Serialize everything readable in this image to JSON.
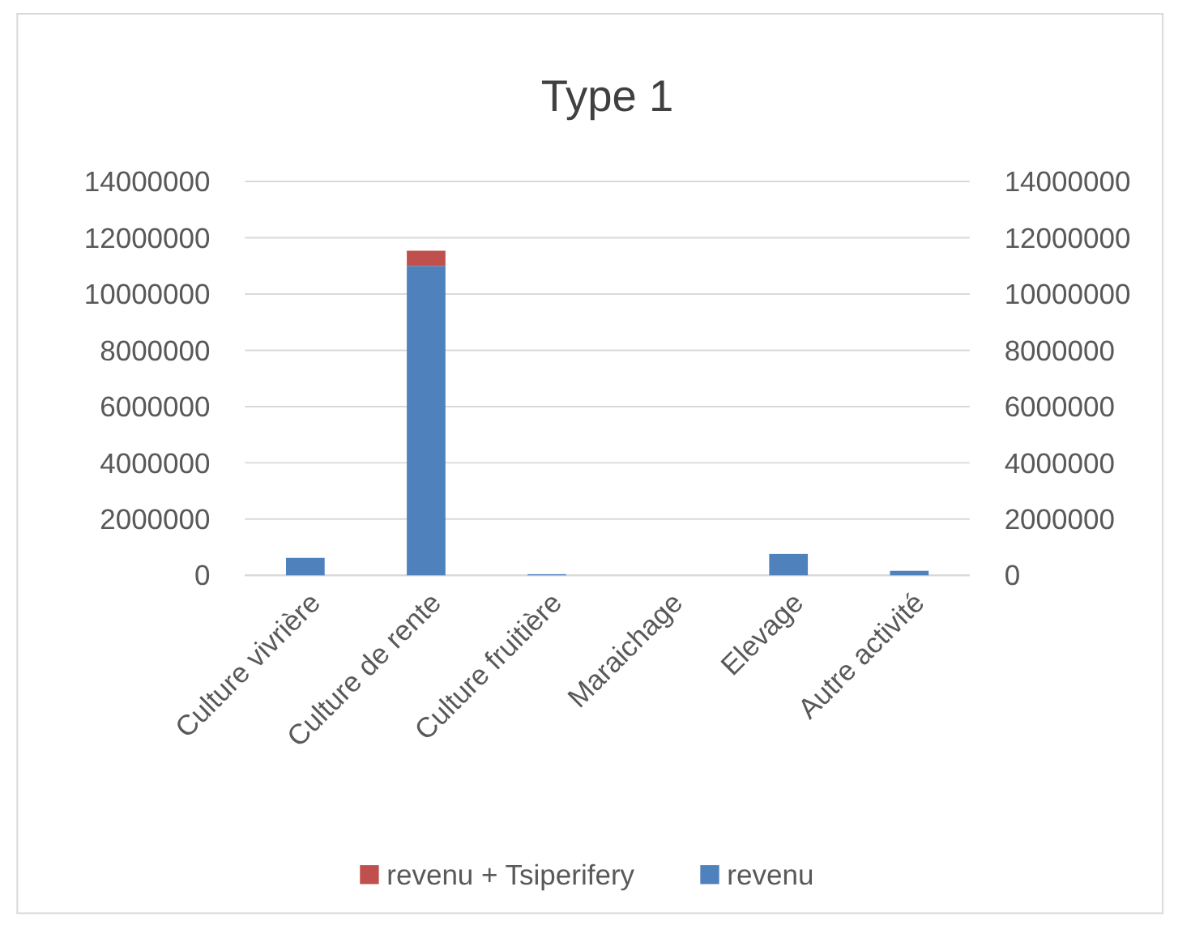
{
  "chart_data": {
    "type": "bar",
    "title": "Type 1",
    "categories": [
      "Culture vivrière",
      "Culture de rente",
      "Culture fruitière",
      "Maraichage",
      "Elevage",
      "Autre activité"
    ],
    "stacked": true,
    "series": [
      {
        "name": "revenu",
        "color": "#4f81bd",
        "values": [
          620000,
          11000000,
          40000,
          0,
          760000,
          160000
        ]
      },
      {
        "name": "revenu + Tsiperifery",
        "color": "#c0504d",
        "values": [
          0,
          540000,
          0,
          0,
          0,
          0
        ]
      }
    ],
    "ylim": [
      0,
      14000000
    ],
    "yticks": [
      0,
      2000000,
      4000000,
      6000000,
      8000000,
      10000000,
      12000000,
      14000000
    ],
    "y2lim": [
      0,
      14000000
    ],
    "y2ticks": [
      0,
      2000000,
      4000000,
      6000000,
      8000000,
      10000000,
      12000000,
      14000000
    ],
    "grid": "y",
    "legend": "bottom"
  }
}
